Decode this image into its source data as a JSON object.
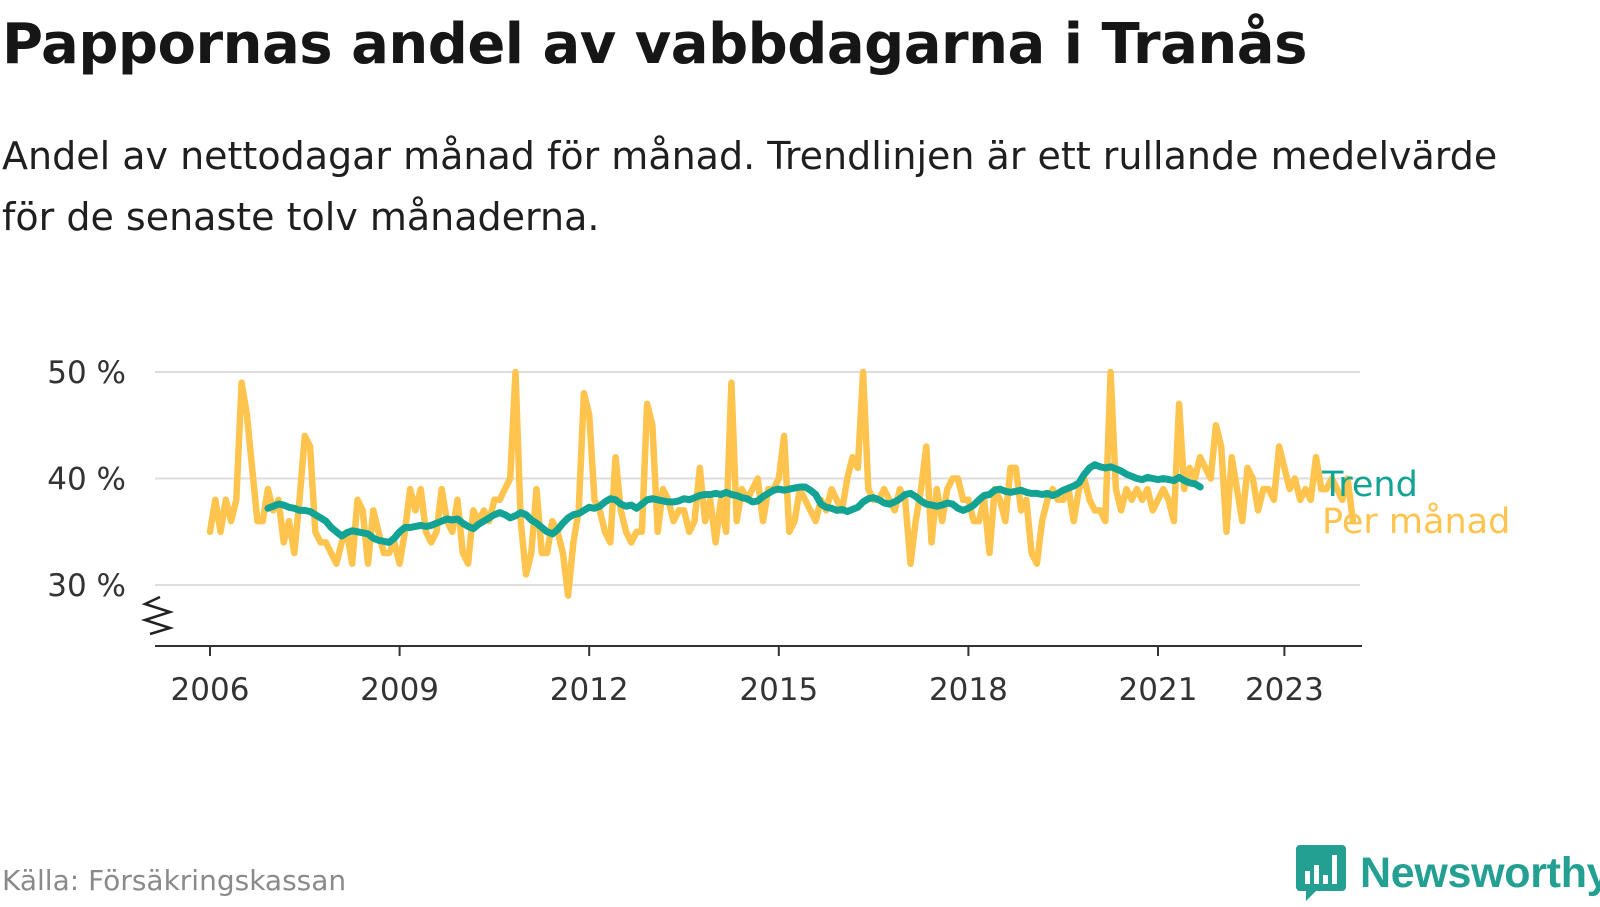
{
  "title": "Pappornas andel av vabbdagarna i Tranås",
  "subtitle": "Andel av nettodagar månad för månad. Trendlinjen är ett rullande medelvärde för de senaste tolv månaderna.",
  "source": "Källa: Försäkringskassan",
  "brand": "Newsworthy",
  "colors": {
    "trend": "#12a394",
    "monthly": "#ffc44d",
    "grid": "#dddddd",
    "axis": "#333333",
    "tick_text": "#333333",
    "brand": "#23a092"
  },
  "chart_data": {
    "type": "line",
    "x_unit": "year",
    "ylim": [
      25,
      50
    ],
    "y_ticks": [
      30,
      40,
      50
    ],
    "y_tick_labels": [
      "30 %",
      "40 %",
      "50 %"
    ],
    "x_ticks": [
      2006,
      2009,
      2012,
      2015,
      2018,
      2021,
      2023
    ],
    "x_tick_labels": [
      "2006",
      "2009",
      "2012",
      "2015",
      "2018",
      "2021",
      "2023"
    ],
    "xlim": [
      2005.2,
      2024.2
    ],
    "grid": true,
    "legend_position": "right",
    "series": [
      {
        "name": "Per månad",
        "x_start": 2006.0,
        "x_step_months": 1,
        "values": [
          35,
          38,
          35,
          38,
          36,
          38,
          49,
          46,
          41,
          36,
          36,
          39,
          37,
          38,
          34,
          36,
          33,
          38,
          44,
          43,
          35,
          34,
          34,
          33,
          32,
          34,
          35,
          32,
          38,
          37,
          32,
          37,
          35,
          33,
          33,
          34,
          32,
          35,
          39,
          37,
          39,
          35,
          34,
          35,
          39,
          36,
          35,
          38,
          33,
          32,
          37,
          36,
          37,
          36,
          38,
          38,
          39,
          40,
          50,
          36,
          31,
          33,
          39,
          33,
          33,
          36,
          35,
          33,
          29,
          34,
          37,
          48,
          46,
          38,
          37,
          35,
          34,
          42,
          37,
          35,
          34,
          35,
          35,
          47,
          45,
          35,
          39,
          38,
          36,
          37,
          37,
          35,
          36,
          41,
          36,
          38,
          34,
          38,
          35,
          49,
          36,
          39,
          38,
          39,
          40,
          36,
          39,
          39,
          40,
          44,
          35,
          36,
          39,
          38,
          37,
          36,
          38,
          37,
          39,
          38,
          37,
          40,
          42,
          41,
          50,
          39,
          38,
          38,
          39,
          38,
          37,
          39,
          38,
          32,
          36,
          39,
          43,
          34,
          39,
          36,
          39,
          40,
          40,
          38,
          38,
          36,
          36,
          38,
          33,
          39,
          38,
          36,
          41,
          41,
          37,
          38,
          33,
          32,
          36,
          38,
          39,
          38,
          38,
          39,
          36,
          39,
          40,
          38,
          37,
          37,
          36,
          50,
          39,
          37,
          39,
          38,
          39,
          38,
          39,
          37,
          38,
          39,
          38,
          36,
          47,
          39,
          41,
          40,
          42,
          41,
          40,
          45,
          43,
          35,
          42,
          39,
          36,
          41,
          40,
          37,
          39,
          39,
          38,
          43,
          41,
          39,
          40,
          38,
          39,
          38,
          42,
          39,
          39,
          40,
          39,
          38,
          40,
          36
        ]
      },
      {
        "name": "Trend",
        "x_start": 2006.917,
        "x_step_months": 1,
        "values": [
          37.2,
          37.4,
          37.6,
          37.5,
          37.3,
          37.2,
          37.0,
          37.0,
          36.9,
          36.6,
          36.3,
          36.0,
          35.4,
          35.0,
          34.6,
          34.9,
          35.1,
          35.0,
          34.9,
          34.8,
          34.4,
          34.2,
          34.1,
          34.0,
          34.4,
          35.0,
          35.4,
          35.4,
          35.5,
          35.6,
          35.5,
          35.6,
          35.8,
          36.0,
          36.2,
          36.1,
          36.2,
          35.8,
          35.5,
          35.3,
          35.7,
          36.0,
          36.3,
          36.6,
          36.8,
          36.6,
          36.3,
          36.5,
          36.8,
          36.6,
          36.1,
          35.8,
          35.4,
          35.0,
          34.8,
          35.2,
          35.8,
          36.3,
          36.6,
          36.7,
          37.0,
          37.3,
          37.2,
          37.4,
          37.8,
          38.1,
          38.0,
          37.6,
          37.4,
          37.5,
          37.2,
          37.6,
          38.0,
          38.1,
          38.0,
          37.9,
          37.8,
          37.8,
          37.9,
          38.1,
          38.0,
          38.2,
          38.4,
          38.5,
          38.5,
          38.6,
          38.5,
          38.7,
          38.5,
          38.4,
          38.2,
          38.1,
          37.8,
          37.9,
          38.3,
          38.6,
          38.9,
          39.0,
          38.9,
          39.0,
          39.1,
          39.2,
          39.2,
          38.9,
          38.5,
          37.6,
          37.3,
          37.2,
          37.0,
          37.1,
          36.9,
          37.1,
          37.3,
          37.8,
          38.1,
          38.2,
          38.0,
          37.7,
          37.6,
          37.8,
          38.1,
          38.5,
          38.6,
          38.3,
          37.9,
          37.6,
          37.5,
          37.4,
          37.5,
          37.7,
          37.6,
          37.2,
          37.0,
          37.2,
          37.5,
          38.0,
          38.4,
          38.5,
          38.9,
          39.0,
          38.8,
          38.7,
          38.8,
          38.9,
          38.7,
          38.6,
          38.6,
          38.5,
          38.6,
          38.4,
          38.6,
          38.9,
          39.1,
          39.3,
          39.6,
          40.4,
          41.0,
          41.3,
          41.1,
          41.0,
          41.1,
          40.9,
          40.7,
          40.4,
          40.2,
          40.0,
          39.9,
          40.1,
          40.0,
          39.9,
          40.0,
          39.9,
          39.8,
          40.1,
          39.8,
          39.6,
          39.5,
          39.2
        ]
      }
    ]
  }
}
